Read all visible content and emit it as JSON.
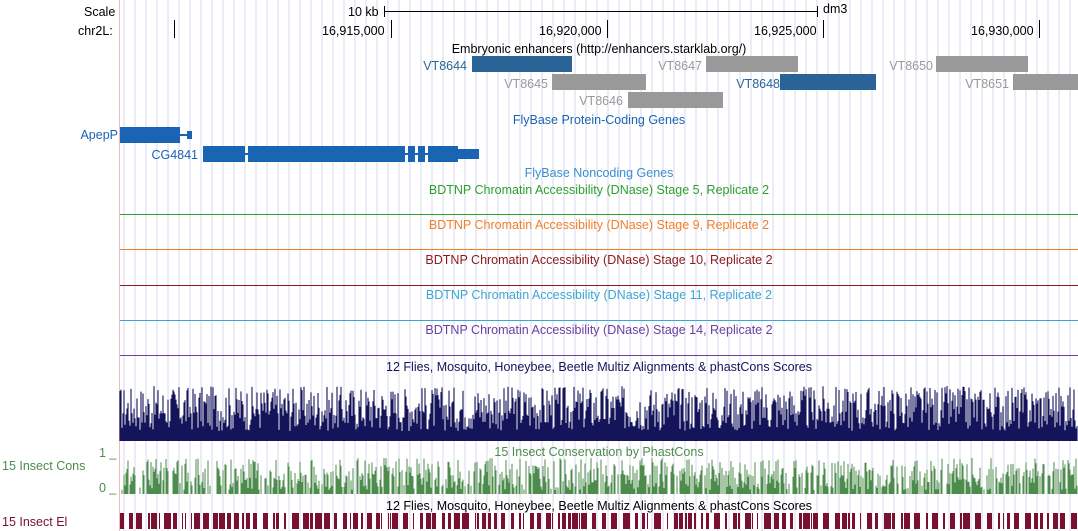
{
  "ruler": {
    "scale_label": "Scale",
    "chrom_label": "chr2L:",
    "scale_bar": "10 kb",
    "assembly": "dm3",
    "ticks": [
      "16,915,000",
      "16,920,000",
      "16,925,000",
      "16,930,000"
    ]
  },
  "tracks": {
    "enhancers": {
      "title": "Embryonic enhancers (http://enhancers.starklab.org/)",
      "items": [
        {
          "label": "VT8644",
          "highlight": true
        },
        {
          "label": "VT8645",
          "highlight": false
        },
        {
          "label": "VT8646",
          "highlight": false
        },
        {
          "label": "VT8647",
          "highlight": false
        },
        {
          "label": "VT8648",
          "highlight": true
        },
        {
          "label": "VT8650",
          "highlight": false
        },
        {
          "label": "VT8651",
          "highlight": false
        }
      ]
    },
    "protein_coding": {
      "title": "FlyBase Protein-Coding Genes",
      "genes": [
        "ApepP",
        "CG4841"
      ]
    },
    "noncoding": {
      "title": "FlyBase Noncoding Genes"
    },
    "dnase": [
      {
        "title": "BDTNP Chromatin Accessibility (DNase) Stage 5, Replicate 2",
        "color": "#2ca02c"
      },
      {
        "title": "BDTNP Chromatin Accessibility (DNase) Stage 9, Replicate 2",
        "color": "#f07f2a"
      },
      {
        "title": "BDTNP Chromatin Accessibility (DNase) Stage 10, Replicate 2",
        "color": "#8c1a1a"
      },
      {
        "title": "BDTNP Chromatin Accessibility (DNase) Stage 11, Replicate 2",
        "color": "#3ca6d2"
      },
      {
        "title": "BDTNP Chromatin Accessibility (DNase) Stage 14, Replicate 2",
        "color": "#6a3fa0"
      }
    ],
    "multiz": {
      "title": "12 Flies, Mosquito, Honeybee, Beetle Multiz Alignments & phastCons Scores"
    },
    "cons15": {
      "title": "15 Insect Conservation by PhastCons",
      "side_label": "15 Insect Cons",
      "scale_max": "1 _",
      "scale_min": "0 _"
    },
    "multiz2": {
      "title": "12 Flies, Mosquito, Honeybee, Beetle Multiz Alignments & phastCons Scores"
    },
    "elements": {
      "side_label": "15 Insect El"
    }
  },
  "colors": {
    "gene_blue": "#1a64b4",
    "enh_blue": "#2a6496",
    "enh_gray": "#999999",
    "multiz_navy": "#14145a",
    "cons_green": "#4c8c4c",
    "elements_maroon": "#7a1030",
    "grid_line": "#d8d8f0",
    "side_line": "#f2b9b9"
  }
}
